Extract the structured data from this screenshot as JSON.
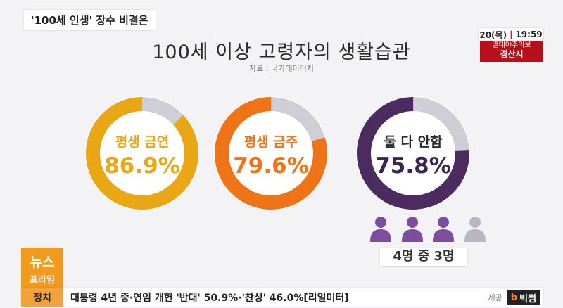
{
  "topic": "'100세 인생' 장수 비결은",
  "clock": {
    "date": "20(목)",
    "time": "19:59"
  },
  "alert": {
    "label": "열대야주의보",
    "place": "경산시"
  },
  "title": "100세 이상 고령자의 생활습관",
  "source": "자료 : 국가데이터처",
  "chart_data": {
    "type": "pie",
    "title": "100세 이상 고령자의 생활습관",
    "series": [
      {
        "name": "평생 금연",
        "value": 86.9,
        "label": "86.9%",
        "color": "#e9a716"
      },
      {
        "name": "평생 금주",
        "value": 79.6,
        "label": "79.6%",
        "color": "#ef7417"
      },
      {
        "name": "둘 다 안함",
        "value": 75.8,
        "label": "75.8%",
        "color": "#4c2c60"
      }
    ],
    "remainder_color": "#cfcdd6",
    "people": {
      "total": 4,
      "highlighted": 3,
      "caption": "4명 중 3명",
      "color": "#7d4ea0",
      "muted_color": "#b9b6c2"
    }
  },
  "news_badge": {
    "line1": "뉴스",
    "line2": "프라임"
  },
  "ticker": {
    "category": "정치",
    "headline": "대통령 4년 중·연임 개헌 '반대' 50.9%·'찬성' 46.0%[리얼미터]",
    "provided_label": "제공",
    "logo": "빅썸",
    "logo_mark": "b"
  }
}
